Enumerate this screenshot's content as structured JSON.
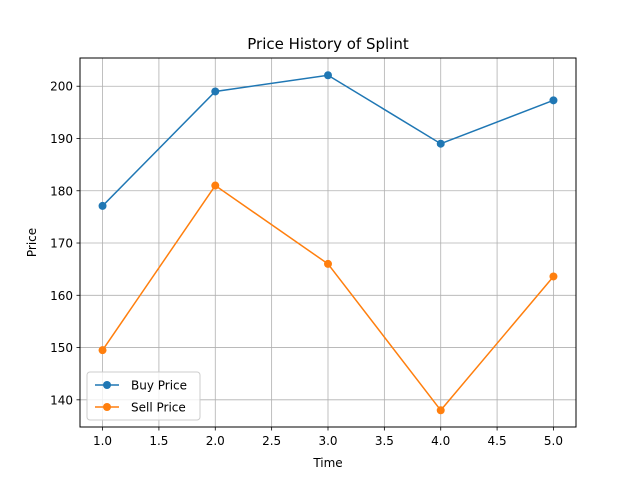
{
  "chart_data": {
    "type": "line",
    "title": "Price History of Splint",
    "xlabel": "Time",
    "ylabel": "Price",
    "x": [
      1.0,
      2.0,
      3.0,
      4.0,
      5.0
    ],
    "xlim": [
      0.8,
      5.2
    ],
    "ylim": [
      134.8,
      205.4
    ],
    "xticks": [
      1.0,
      1.5,
      2.0,
      2.5,
      3.0,
      3.5,
      4.0,
      4.5,
      5.0
    ],
    "xtick_labels": [
      "1.0",
      "1.5",
      "2.0",
      "2.5",
      "3.0",
      "3.5",
      "4.0",
      "4.5",
      "5.0"
    ],
    "yticks": [
      140,
      150,
      160,
      170,
      180,
      190,
      200
    ],
    "ytick_labels": [
      "140",
      "150",
      "160",
      "170",
      "180",
      "190",
      "200"
    ],
    "grid": true,
    "legend_position": "lower-left",
    "series": [
      {
        "name": "Buy Price",
        "color": "#1f77b4",
        "marker": "circle",
        "values": [
          177.1,
          199.0,
          202.1,
          189.0,
          197.3
        ]
      },
      {
        "name": "Sell Price",
        "color": "#ff7f0e",
        "marker": "circle",
        "values": [
          149.5,
          181.0,
          166.0,
          138.0,
          163.6
        ]
      }
    ]
  }
}
